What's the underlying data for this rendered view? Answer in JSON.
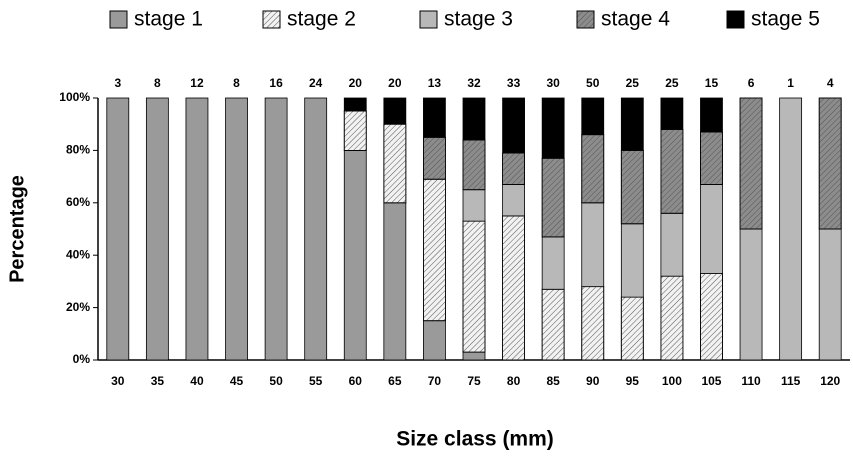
{
  "chart_data": {
    "type": "stacked-bar",
    "x_label": "Size class (mm)",
    "y_label": "Percentage",
    "categories": [
      "30",
      "35",
      "40",
      "45",
      "50",
      "55",
      "60",
      "65",
      "70",
      "75",
      "80",
      "85",
      "90",
      "95",
      "100",
      "105",
      "110",
      "115",
      "120"
    ],
    "counts": [
      3,
      8,
      12,
      8,
      16,
      24,
      20,
      20,
      13,
      32,
      33,
      30,
      50,
      25,
      25,
      15,
      6,
      1,
      4
    ],
    "series": [
      {
        "name": "stage 1",
        "color": "#9a9a9a",
        "hatch": false,
        "values": [
          100,
          100,
          100,
          100,
          100,
          100,
          80,
          60,
          15,
          3,
          0,
          0,
          0,
          0,
          0,
          0,
          0,
          0,
          0
        ]
      },
      {
        "name": "stage 2",
        "color": "#f2f2f2",
        "hatch": true,
        "values": [
          0,
          0,
          0,
          0,
          0,
          0,
          15,
          30,
          54,
          50,
          55,
          27,
          28,
          24,
          32,
          33,
          0,
          0,
          0
        ]
      },
      {
        "name": "stage 3",
        "color": "#b8b8b8",
        "hatch": false,
        "values": [
          0,
          0,
          0,
          0,
          0,
          0,
          0,
          0,
          0,
          12,
          12,
          20,
          32,
          28,
          24,
          34,
          50,
          100,
          50
        ]
      },
      {
        "name": "stage 4",
        "color": "#8c8c8c",
        "hatch": true,
        "values": [
          0,
          0,
          0,
          0,
          0,
          0,
          0,
          0,
          16,
          19,
          12,
          30,
          26,
          28,
          32,
          20,
          50,
          0,
          50
        ]
      },
      {
        "name": "stage 5",
        "color": "#000000",
        "hatch": false,
        "values": [
          0,
          0,
          0,
          0,
          0,
          0,
          5,
          10,
          15,
          16,
          21,
          23,
          14,
          20,
          12,
          13,
          0,
          0,
          0
        ]
      }
    ],
    "ylim": [
      0,
      100
    ],
    "yticks": [
      {
        "value": 0,
        "label": "0%"
      },
      {
        "value": 20,
        "label": "20%"
      },
      {
        "value": 40,
        "label": "40%"
      },
      {
        "value": 60,
        "label": "60%"
      },
      {
        "value": 80,
        "label": "80%"
      },
      {
        "value": 100,
        "label": "100%"
      }
    ]
  }
}
